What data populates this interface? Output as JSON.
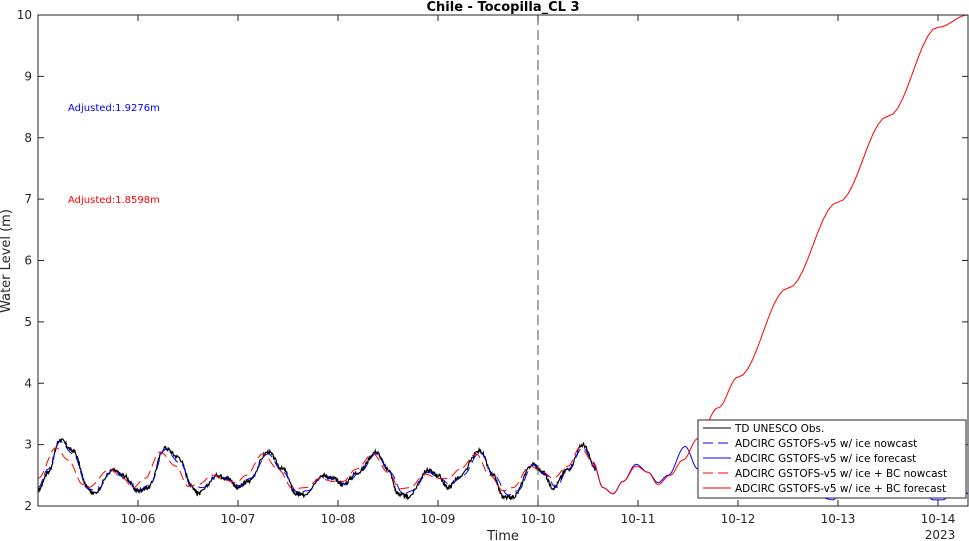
{
  "chart_data": {
    "type": "line",
    "title": "Chile - Tocopilla_CL 3",
    "xlabel": "Time",
    "ylabel": "Water Level (m)",
    "year_label": "2023",
    "ylim": [
      2,
      10
    ],
    "xlim": [
      5.0,
      14.3
    ],
    "y_ticks": [
      2,
      3,
      4,
      5,
      6,
      7,
      8,
      9,
      10
    ],
    "x_ticks": [
      {
        "value": 6,
        "label": "10-06"
      },
      {
        "value": 7,
        "label": "10-07"
      },
      {
        "value": 8,
        "label": "10-08"
      },
      {
        "value": 9,
        "label": "10-09"
      },
      {
        "value": 10,
        "label": "10-10"
      },
      {
        "value": 11,
        "label": "10-11"
      },
      {
        "value": 12,
        "label": "10-12"
      },
      {
        "value": 13,
        "label": "10-13"
      },
      {
        "value": 14,
        "label": "10-14"
      }
    ],
    "vline_x": 10.0,
    "grid": false,
    "legend_placement": "bottom-right",
    "annotations": [
      {
        "text": "Adjusted:1.9276m",
        "color": "#0000ff",
        "x": 5.3,
        "y": 8.5
      },
      {
        "text": "Adjusted:1.8598m",
        "color": "#ff0000",
        "x": 5.3,
        "y": 7.0
      }
    ],
    "series": [
      {
        "name": "TD UNESCO Obs.",
        "color": "#000000",
        "dash": "solid",
        "noisy": true,
        "points": [
          [
            5.0,
            2.25
          ],
          [
            5.1,
            2.55
          ],
          [
            5.22,
            3.08
          ],
          [
            5.35,
            2.9
          ],
          [
            5.5,
            2.3
          ],
          [
            5.55,
            2.2
          ],
          [
            5.75,
            2.58
          ],
          [
            5.85,
            2.5
          ],
          [
            6.0,
            2.25
          ],
          [
            6.1,
            2.3
          ],
          [
            6.27,
            2.95
          ],
          [
            6.4,
            2.8
          ],
          [
            6.55,
            2.3
          ],
          [
            6.6,
            2.2
          ],
          [
            6.8,
            2.5
          ],
          [
            6.9,
            2.45
          ],
          [
            7.0,
            2.3
          ],
          [
            7.1,
            2.4
          ],
          [
            7.3,
            2.88
          ],
          [
            7.45,
            2.6
          ],
          [
            7.58,
            2.2
          ],
          [
            7.65,
            2.18
          ],
          [
            7.85,
            2.5
          ],
          [
            7.95,
            2.45
          ],
          [
            8.05,
            2.35
          ],
          [
            8.2,
            2.55
          ],
          [
            8.38,
            2.88
          ],
          [
            8.5,
            2.6
          ],
          [
            8.6,
            2.2
          ],
          [
            8.7,
            2.15
          ],
          [
            8.9,
            2.58
          ],
          [
            9.0,
            2.5
          ],
          [
            9.1,
            2.3
          ],
          [
            9.2,
            2.45
          ],
          [
            9.42,
            2.9
          ],
          [
            9.55,
            2.5
          ],
          [
            9.65,
            2.15
          ],
          [
            9.75,
            2.15
          ],
          [
            9.95,
            2.68
          ],
          [
            10.05,
            2.55
          ],
          [
            10.15,
            2.3
          ],
          [
            10.3,
            2.6
          ],
          [
            10.45,
            3.0
          ],
          [
            10.58,
            2.6
          ]
        ]
      },
      {
        "name": "ADCIRC GSTOFS-v5 w/ ice nowcast",
        "color": "#0000ff",
        "dash": "dash",
        "noisy": false,
        "points": [
          [
            5.0,
            2.3
          ],
          [
            5.1,
            2.6
          ],
          [
            5.22,
            3.05
          ],
          [
            5.35,
            2.85
          ],
          [
            5.5,
            2.28
          ],
          [
            5.58,
            2.25
          ],
          [
            5.75,
            2.58
          ],
          [
            5.88,
            2.45
          ],
          [
            6.0,
            2.25
          ],
          [
            6.12,
            2.35
          ],
          [
            6.27,
            2.92
          ],
          [
            6.42,
            2.7
          ],
          [
            6.55,
            2.32
          ],
          [
            6.65,
            2.3
          ],
          [
            6.8,
            2.5
          ],
          [
            6.92,
            2.42
          ],
          [
            7.02,
            2.32
          ],
          [
            7.12,
            2.45
          ],
          [
            7.3,
            2.85
          ],
          [
            7.45,
            2.55
          ],
          [
            7.6,
            2.22
          ],
          [
            7.7,
            2.25
          ],
          [
            7.85,
            2.5
          ],
          [
            7.98,
            2.42
          ],
          [
            8.08,
            2.35
          ],
          [
            8.22,
            2.55
          ],
          [
            8.38,
            2.85
          ],
          [
            8.52,
            2.55
          ],
          [
            8.65,
            2.2
          ],
          [
            8.75,
            2.25
          ],
          [
            8.9,
            2.55
          ],
          [
            9.02,
            2.45
          ],
          [
            9.12,
            2.35
          ],
          [
            9.25,
            2.5
          ],
          [
            9.42,
            2.88
          ],
          [
            9.56,
            2.5
          ],
          [
            9.7,
            2.18
          ],
          [
            9.8,
            2.25
          ],
          [
            9.95,
            2.68
          ],
          [
            10.08,
            2.5
          ],
          [
            10.18,
            2.3
          ],
          [
            10.3,
            2.6
          ],
          [
            10.45,
            2.95
          ],
          [
            10.58,
            2.6
          ]
        ]
      },
      {
        "name": "ADCIRC GSTOFS-v5 w/ ice forecast",
        "color": "#0000ff",
        "dash": "solid",
        "noisy": false,
        "points": [
          [
            10.55,
            2.7
          ],
          [
            10.65,
            2.3
          ],
          [
            10.75,
            2.2
          ],
          [
            10.85,
            2.4
          ],
          [
            10.98,
            2.68
          ],
          [
            11.1,
            2.55
          ],
          [
            11.2,
            2.38
          ],
          [
            11.3,
            2.5
          ],
          [
            11.47,
            2.97
          ],
          [
            11.6,
            2.6
          ],
          [
            11.75,
            2.2
          ],
          [
            11.85,
            2.15
          ],
          [
            12.0,
            2.4
          ],
          [
            12.1,
            2.5
          ],
          [
            12.2,
            2.35
          ],
          [
            12.3,
            2.3
          ],
          [
            12.5,
            2.85
          ],
          [
            12.65,
            2.55
          ],
          [
            12.8,
            2.15
          ],
          [
            12.95,
            2.1
          ],
          [
            13.1,
            2.45
          ],
          [
            13.2,
            2.5
          ],
          [
            13.35,
            2.3
          ],
          [
            13.45,
            2.35
          ],
          [
            13.65,
            2.85
          ],
          [
            13.8,
            2.55
          ],
          [
            13.95,
            2.1
          ],
          [
            14.05,
            2.1
          ],
          [
            14.2,
            2.45
          ],
          [
            14.3,
            2.2
          ]
        ]
      },
      {
        "name": "ADCIRC GSTOFS-v5 w/ ice + BC nowcast",
        "color": "#ff0000",
        "dash": "dash",
        "noisy": false,
        "points": [
          [
            5.0,
            2.45
          ],
          [
            5.18,
            2.95
          ],
          [
            5.3,
            2.75
          ],
          [
            5.45,
            2.35
          ],
          [
            5.5,
            2.3
          ],
          [
            5.72,
            2.6
          ],
          [
            5.85,
            2.45
          ],
          [
            5.95,
            2.3
          ],
          [
            6.07,
            2.45
          ],
          [
            6.22,
            2.88
          ],
          [
            6.38,
            2.65
          ],
          [
            6.5,
            2.32
          ],
          [
            6.6,
            2.35
          ],
          [
            6.75,
            2.5
          ],
          [
            6.88,
            2.42
          ],
          [
            6.98,
            2.38
          ],
          [
            7.08,
            2.5
          ],
          [
            7.25,
            2.85
          ],
          [
            7.4,
            2.6
          ],
          [
            7.55,
            2.28
          ],
          [
            7.68,
            2.3
          ],
          [
            7.82,
            2.45
          ],
          [
            7.95,
            2.4
          ],
          [
            8.05,
            2.4
          ],
          [
            8.18,
            2.6
          ],
          [
            8.35,
            2.85
          ],
          [
            8.5,
            2.55
          ],
          [
            8.62,
            2.28
          ],
          [
            8.72,
            2.3
          ],
          [
            8.87,
            2.52
          ],
          [
            9.0,
            2.45
          ],
          [
            9.1,
            2.45
          ],
          [
            9.22,
            2.6
          ],
          [
            9.38,
            2.85
          ],
          [
            9.52,
            2.5
          ],
          [
            9.65,
            2.25
          ],
          [
            9.75,
            2.3
          ],
          [
            9.92,
            2.65
          ],
          [
            10.05,
            2.55
          ],
          [
            10.15,
            2.45
          ],
          [
            10.3,
            2.65
          ],
          [
            10.42,
            2.95
          ],
          [
            10.58,
            2.65
          ]
        ]
      },
      {
        "name": "ADCIRC GSTOFS-v5 w/ ice + BC forecast",
        "color": "#ff0000",
        "dash": "solid",
        "noisy": false,
        "points": [
          [
            10.55,
            2.72
          ],
          [
            10.65,
            2.3
          ],
          [
            10.75,
            2.2
          ],
          [
            10.85,
            2.4
          ],
          [
            10.98,
            2.65
          ],
          [
            11.1,
            2.55
          ],
          [
            11.2,
            2.35
          ],
          [
            11.32,
            2.5
          ],
          [
            11.45,
            2.75
          ],
          [
            11.6,
            3.1
          ],
          [
            11.8,
            3.6
          ],
          [
            12.0,
            4.1
          ],
          [
            12.5,
            5.55
          ],
          [
            13.0,
            6.95
          ],
          [
            13.5,
            8.35
          ],
          [
            14.0,
            9.8
          ],
          [
            14.3,
            10.0
          ]
        ]
      }
    ]
  }
}
